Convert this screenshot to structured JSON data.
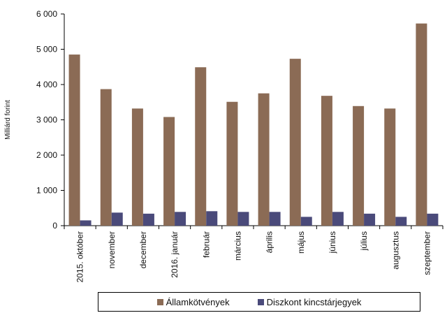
{
  "chart_data": {
    "type": "bar",
    "ylabel": "Milliárd forint",
    "ylim": [
      0,
      6000
    ],
    "yticks": [
      0,
      1000,
      2000,
      3000,
      4000,
      5000,
      6000
    ],
    "ytick_labels": [
      "0",
      "1 000",
      "2 000",
      "3 000",
      "4 000",
      "5 000",
      "6 000"
    ],
    "categories": [
      "2015. október",
      "november",
      "december",
      "2016. január",
      "február",
      "március",
      "április",
      "május",
      "június",
      "július",
      "augusztus",
      "szeptember"
    ],
    "series": [
      {
        "name": "Államkötvények",
        "color": "#8B6B55",
        "values": [
          4850,
          3870,
          3320,
          3080,
          4490,
          3510,
          3750,
          4730,
          3680,
          3390,
          3320,
          5730
        ]
      },
      {
        "name": "Diszkont kincstárjegyek",
        "color": "#4A4A7A",
        "values": [
          150,
          370,
          340,
          390,
          410,
          390,
          390,
          250,
          390,
          340,
          250,
          340
        ]
      }
    ],
    "grid": false,
    "legend": "bottom"
  }
}
